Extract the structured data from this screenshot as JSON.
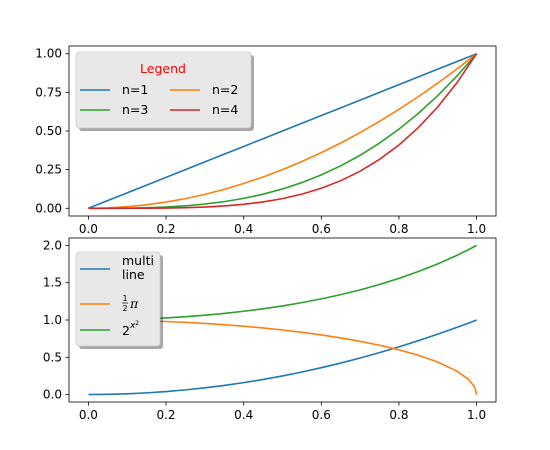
{
  "chart_data": [
    {
      "type": "line",
      "xlim": [
        -0.05,
        1.05
      ],
      "ylim": [
        -0.05,
        1.05
      ],
      "xticks": [
        0.0,
        0.2,
        0.4,
        0.6,
        0.8,
        1.0
      ],
      "xtick_labels": [
        "0.0",
        "0.2",
        "0.4",
        "0.6",
        "0.8",
        "1.0"
      ],
      "yticks": [
        0.0,
        0.25,
        0.5,
        0.75,
        1.0
      ],
      "ytick_labels": [
        "0.00",
        "0.25",
        "0.50",
        "0.75",
        "1.00"
      ],
      "grid": false,
      "legend": {
        "title": "Legend",
        "title_color": "#ff0000",
        "placement": "upper-left",
        "columns": 2
      },
      "x": [
        0.0,
        0.05,
        0.1,
        0.15,
        0.2,
        0.25,
        0.3,
        0.35,
        0.4,
        0.45,
        0.5,
        0.55,
        0.6,
        0.65,
        0.7,
        0.75,
        0.8,
        0.85,
        0.9,
        0.95,
        1.0
      ],
      "series": [
        {
          "name": "n=1",
          "color": "#1f77b4",
          "values": [
            0.0,
            0.05,
            0.1,
            0.15,
            0.2,
            0.25,
            0.3,
            0.35,
            0.4,
            0.45,
            0.5,
            0.55,
            0.6,
            0.65,
            0.7,
            0.75,
            0.8,
            0.85,
            0.9,
            0.95,
            1.0
          ]
        },
        {
          "name": "n=2",
          "color": "#ff7f0e",
          "values": [
            0.0,
            0.0025,
            0.01,
            0.0225,
            0.04,
            0.0625,
            0.09,
            0.1225,
            0.16,
            0.2025,
            0.25,
            0.3025,
            0.36,
            0.4225,
            0.49,
            0.5625,
            0.64,
            0.7225,
            0.81,
            0.9025,
            1.0
          ]
        },
        {
          "name": "n=3",
          "color": "#2ca02c",
          "values": [
            0.0,
            0.0001,
            0.001,
            0.0034,
            0.008,
            0.0156,
            0.027,
            0.0429,
            0.064,
            0.0911,
            0.125,
            0.1664,
            0.216,
            0.2746,
            0.343,
            0.4219,
            0.512,
            0.6141,
            0.729,
            0.8574,
            1.0
          ]
        },
        {
          "name": "n=4",
          "color": "#d62728",
          "values": [
            0.0,
            0.0,
            0.0001,
            0.0005,
            0.0016,
            0.0039,
            0.0081,
            0.015,
            0.0256,
            0.041,
            0.0625,
            0.0915,
            0.1296,
            0.1785,
            0.2401,
            0.3164,
            0.4096,
            0.522,
            0.6561,
            0.8145,
            1.0
          ]
        }
      ]
    },
    {
      "type": "line",
      "xlim": [
        -0.05,
        1.05
      ],
      "ylim": [
        -0.1,
        2.1
      ],
      "xticks": [
        0.0,
        0.2,
        0.4,
        0.6,
        0.8,
        1.0
      ],
      "xtick_labels": [
        "0.0",
        "0.2",
        "0.4",
        "0.6",
        "0.8",
        "1.0"
      ],
      "yticks": [
        0.0,
        0.5,
        1.0,
        1.5,
        2.0
      ],
      "ytick_labels": [
        "0.0",
        "0.5",
        "1.0",
        "1.5",
        "2.0"
      ],
      "grid": false,
      "legend": {
        "placement": "upper-left",
        "columns": 1
      },
      "x": [
        0.0,
        0.05,
        0.1,
        0.15,
        0.2,
        0.25,
        0.3,
        0.35,
        0.4,
        0.45,
        0.5,
        0.55,
        0.6,
        0.65,
        0.7,
        0.75,
        0.8,
        0.85,
        0.9,
        0.95,
        0.98,
        0.995,
        1.0
      ],
      "series": [
        {
          "name": "multi\nline",
          "label_lines": [
            "multi",
            "line"
          ],
          "color": "#1f77b4",
          "values": [
            0.0,
            0.0025,
            0.01,
            0.0225,
            0.04,
            0.0625,
            0.09,
            0.1225,
            0.16,
            0.2025,
            0.25,
            0.3025,
            0.36,
            0.4225,
            0.49,
            0.5625,
            0.64,
            0.7225,
            0.81,
            0.9025,
            0.9604,
            0.99,
            1.0
          ]
        },
        {
          "name": "½π",
          "color": "#ff7f0e",
          "values": [
            1.0,
            0.9988,
            0.995,
            0.9887,
            0.9798,
            0.9682,
            0.9539,
            0.9367,
            0.9165,
            0.893,
            0.866,
            0.8352,
            0.8,
            0.7599,
            0.7141,
            0.6614,
            0.6,
            0.5268,
            0.4359,
            0.3122,
            0.199,
            0.0999,
            0.0
          ]
        },
        {
          "name": "2^(x²)",
          "color": "#2ca02c",
          "values": [
            1.0,
            1.0017,
            1.007,
            1.0157,
            1.0281,
            1.0443,
            1.0644,
            1.0886,
            1.1173,
            1.1507,
            1.1892,
            1.2333,
            1.2834,
            1.3402,
            1.4044,
            1.4768,
            1.5583,
            1.65,
            1.753,
            1.8687,
            1.9458,
            1.9862,
            2.0
          ]
        }
      ]
    }
  ]
}
